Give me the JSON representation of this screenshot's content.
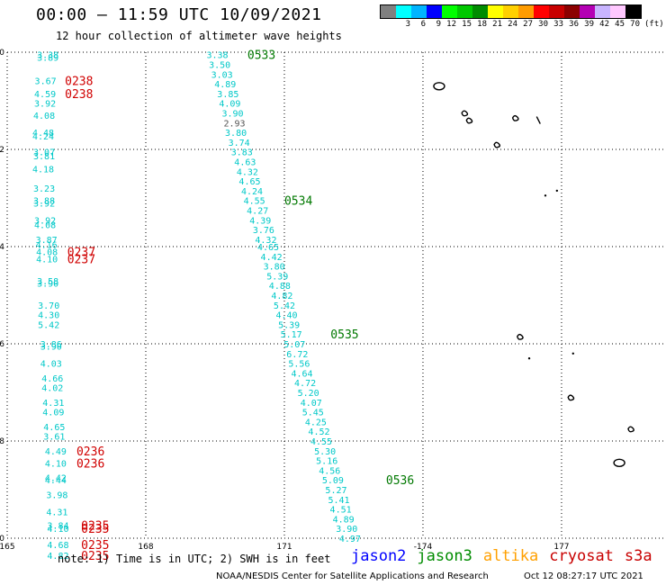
{
  "header": {
    "title": "00:00 – 11:59 UTC 10/09/2021",
    "subtitle": "12 hour collection of altimeter wave heights"
  },
  "colorbar": {
    "colors": [
      "#808080",
      "#00ffff",
      "#00b4ff",
      "#0000ff",
      "#00ff00",
      "#00c800",
      "#008c00",
      "#ffff00",
      "#ffd000",
      "#ff9c00",
      "#ff0000",
      "#c80000",
      "#8c0000",
      "#b400b4",
      "#c8b4ff",
      "#ffc8ff",
      "#000000"
    ],
    "labels": [
      "",
      "3",
      "6",
      "9",
      "12",
      "15",
      "18",
      "21",
      "24",
      "27",
      "30",
      "33",
      "36",
      "39",
      "42",
      "45",
      "70"
    ],
    "unit": "(ft)"
  },
  "map": {
    "lon_ticks": [
      "165",
      "168",
      "171",
      "-174",
      "177"
    ],
    "lat_ticks": [
      "0",
      "-2",
      "-4",
      "-6",
      "-8",
      "-10"
    ]
  },
  "tracks": {
    "west_values": [
      {
        "lat": -0.05,
        "lon": 165.88,
        "v": "3.38"
      },
      {
        "lat": -0.1,
        "lon": 165.88,
        "v": "3.89"
      },
      {
        "lat": -0.58,
        "lon": 165.83,
        "v": "3.67"
      },
      {
        "lat": -0.85,
        "lon": 165.82,
        "v": "4.59"
      },
      {
        "lat": -1.05,
        "lon": 165.82,
        "v": "3.92"
      },
      {
        "lat": -1.3,
        "lon": 165.8,
        "v": "4.08"
      },
      {
        "lat": -1.65,
        "lon": 165.78,
        "v": "4.48"
      },
      {
        "lat": -1.72,
        "lon": 165.78,
        "v": "4.24"
      },
      {
        "lat": -2.05,
        "lon": 165.8,
        "v": "3.07"
      },
      {
        "lat": -2.13,
        "lon": 165.8,
        "v": "3.81"
      },
      {
        "lat": -2.4,
        "lon": 165.78,
        "v": "4.18"
      },
      {
        "lat": -2.8,
        "lon": 165.8,
        "v": "3.23"
      },
      {
        "lat": -3.05,
        "lon": 165.8,
        "v": "3.88"
      },
      {
        "lat": -3.1,
        "lon": 165.8,
        "v": "3.92"
      },
      {
        "lat": -3.45,
        "lon": 165.82,
        "v": "3.92"
      },
      {
        "lat": -3.55,
        "lon": 165.82,
        "v": "4.08"
      },
      {
        "lat": -3.85,
        "lon": 165.85,
        "v": "3.87"
      },
      {
        "lat": -3.95,
        "lon": 165.85,
        "v": "4.16"
      },
      {
        "lat": -4.1,
        "lon": 165.86,
        "v": "4.08"
      },
      {
        "lat": -4.25,
        "lon": 165.86,
        "v": "4.10"
      },
      {
        "lat": -4.7,
        "lon": 165.88,
        "v": "3.58"
      },
      {
        "lat": -4.75,
        "lon": 165.88,
        "v": "3.90"
      },
      {
        "lat": -5.2,
        "lon": 165.9,
        "v": "3.70"
      },
      {
        "lat": -5.4,
        "lon": 165.9,
        "v": "4.30"
      },
      {
        "lat": -5.6,
        "lon": 165.9,
        "v": "5.42"
      },
      {
        "lat": -6.0,
        "lon": 165.95,
        "v": "3.86"
      },
      {
        "lat": -6.05,
        "lon": 165.95,
        "v": "3.90"
      },
      {
        "lat": -6.4,
        "lon": 165.95,
        "v": "4.03"
      },
      {
        "lat": -6.7,
        "lon": 165.98,
        "v": "4.66"
      },
      {
        "lat": -6.9,
        "lon": 165.98,
        "v": "4.02"
      },
      {
        "lat": -7.2,
        "lon": 166.0,
        "v": "4.31"
      },
      {
        "lat": -7.4,
        "lon": 166.0,
        "v": "4.09"
      },
      {
        "lat": -7.7,
        "lon": 166.02,
        "v": "4.65"
      },
      {
        "lat": -7.9,
        "lon": 166.02,
        "v": "3.61"
      },
      {
        "lat": -8.2,
        "lon": 166.05,
        "v": "4.49"
      },
      {
        "lat": -8.45,
        "lon": 166.05,
        "v": "4.10"
      },
      {
        "lat": -8.75,
        "lon": 166.05,
        "v": "4.42"
      },
      {
        "lat": -8.8,
        "lon": 166.05,
        "v": "4.44"
      },
      {
        "lat": -9.1,
        "lon": 166.08,
        "v": "3.98"
      },
      {
        "lat": -9.45,
        "lon": 166.08,
        "v": "4.31"
      },
      {
        "lat": -9.73,
        "lon": 166.1,
        "v": "3.84"
      },
      {
        "lat": -9.8,
        "lon": 166.1,
        "v": "4.10"
      },
      {
        "lat": -10.13,
        "lon": 166.1,
        "v": "4.68"
      },
      {
        "lat": -10.35,
        "lon": 166.1,
        "v": "4.82"
      }
    ],
    "west_times": [
      {
        "lat": -0.58,
        "lon": 166.25,
        "v": "0238"
      },
      {
        "lat": -0.85,
        "lon": 166.25,
        "v": "0238"
      },
      {
        "lat": -4.1,
        "lon": 166.3,
        "v": "0237"
      },
      {
        "lat": -4.25,
        "lon": 166.3,
        "v": "0237"
      },
      {
        "lat": -8.2,
        "lon": 166.5,
        "v": "0236"
      },
      {
        "lat": -8.45,
        "lon": 166.5,
        "v": "0236"
      },
      {
        "lat": -9.73,
        "lon": 166.6,
        "v": "0235"
      },
      {
        "lat": -9.8,
        "lon": 166.6,
        "v": "0235"
      },
      {
        "lat": -10.13,
        "lon": 166.6,
        "v": "0235"
      },
      {
        "lat": -10.35,
        "lon": 166.6,
        "v": "0235"
      }
    ],
    "east_values": [
      {
        "lat": -0.05,
        "lon": 169.55,
        "v": "3.38",
        "grey": false
      },
      {
        "lat": -0.25,
        "lon": 169.6,
        "v": "3.50",
        "grey": false
      },
      {
        "lat": -0.45,
        "lon": 169.65,
        "v": "3.03",
        "grey": false
      },
      {
        "lat": -0.65,
        "lon": 169.72,
        "v": "4.89",
        "grey": false
      },
      {
        "lat": -0.85,
        "lon": 169.78,
        "v": "3.85",
        "grey": false
      },
      {
        "lat": -1.05,
        "lon": 169.82,
        "v": "4.09",
        "grey": false
      },
      {
        "lat": -1.25,
        "lon": 169.88,
        "v": "3.90",
        "grey": false
      },
      {
        "lat": -1.45,
        "lon": 169.92,
        "v": "2.93",
        "grey": true
      },
      {
        "lat": -1.65,
        "lon": 169.95,
        "v": "3.80",
        "grey": false
      },
      {
        "lat": -1.85,
        "lon": 170.02,
        "v": "3.74",
        "grey": false
      },
      {
        "lat": -2.05,
        "lon": 170.08,
        "v": "3.83",
        "grey": false
      },
      {
        "lat": -2.25,
        "lon": 170.15,
        "v": "4.63",
        "grey": false
      },
      {
        "lat": -2.45,
        "lon": 170.2,
        "v": "4.32",
        "grey": false
      },
      {
        "lat": -2.65,
        "lon": 170.25,
        "v": "4.65",
        "grey": false
      },
      {
        "lat": -2.85,
        "lon": 170.3,
        "v": "4.24",
        "grey": false
      },
      {
        "lat": -3.05,
        "lon": 170.35,
        "v": "4.55",
        "grey": false
      },
      {
        "lat": -3.25,
        "lon": 170.42,
        "v": "4.27",
        "grey": false
      },
      {
        "lat": -3.45,
        "lon": 170.48,
        "v": "4.39",
        "grey": false
      },
      {
        "lat": -3.65,
        "lon": 170.55,
        "v": "3.76",
        "grey": false
      },
      {
        "lat": -3.85,
        "lon": 170.6,
        "v": "4.32",
        "grey": false
      },
      {
        "lat": -4.0,
        "lon": 170.65,
        "v": "4.65",
        "grey": false
      },
      {
        "lat": -4.2,
        "lon": 170.72,
        "v": "4.42",
        "grey": false
      },
      {
        "lat": -4.4,
        "lon": 170.78,
        "v": "3.80",
        "grey": false
      },
      {
        "lat": -4.6,
        "lon": 170.85,
        "v": "5.39",
        "grey": false
      },
      {
        "lat": -4.8,
        "lon": 170.9,
        "v": "4.88",
        "grey": false
      },
      {
        "lat": -5.0,
        "lon": 170.95,
        "v": "4.82",
        "grey": false
      },
      {
        "lat": -5.2,
        "lon": 171.0,
        "v": "5.42",
        "grey": false
      },
      {
        "lat": -5.4,
        "lon": 171.05,
        "v": "4.40",
        "grey": false
      },
      {
        "lat": -5.6,
        "lon": 171.1,
        "v": "5.39",
        "grey": false
      },
      {
        "lat": -5.8,
        "lon": 171.15,
        "v": "5.17",
        "grey": false
      },
      {
        "lat": -6.0,
        "lon": 171.22,
        "v": "5.07",
        "grey": false
      },
      {
        "lat": -6.2,
        "lon": 171.28,
        "v": "6.72",
        "grey": false
      },
      {
        "lat": -6.4,
        "lon": 171.32,
        "v": "5.56",
        "grey": false
      },
      {
        "lat": -6.6,
        "lon": 171.38,
        "v": "4.64",
        "grey": false
      },
      {
        "lat": -6.8,
        "lon": 171.45,
        "v": "4.72",
        "grey": false
      },
      {
        "lat": -7.0,
        "lon": 171.52,
        "v": "5.20",
        "grey": false
      },
      {
        "lat": -7.2,
        "lon": 171.58,
        "v": "4.07",
        "grey": false
      },
      {
        "lat": -7.4,
        "lon": 171.62,
        "v": "5.45",
        "grey": false
      },
      {
        "lat": -7.6,
        "lon": 171.68,
        "v": "4.25",
        "grey": false
      },
      {
        "lat": -7.8,
        "lon": 171.75,
        "v": "4.52",
        "grey": false
      },
      {
        "lat": -8.0,
        "lon": 171.8,
        "v": "4.55",
        "grey": false
      },
      {
        "lat": -8.2,
        "lon": 171.88,
        "v": "5.30",
        "grey": false
      },
      {
        "lat": -8.4,
        "lon": 171.92,
        "v": "5.16",
        "grey": false
      },
      {
        "lat": -8.6,
        "lon": 171.98,
        "v": "4.56",
        "grey": false
      },
      {
        "lat": -8.8,
        "lon": 172.05,
        "v": "5.09",
        "grey": false
      },
      {
        "lat": -9.0,
        "lon": 172.12,
        "v": "5.27",
        "grey": false
      },
      {
        "lat": -9.2,
        "lon": 172.18,
        "v": "5.41",
        "grey": false
      },
      {
        "lat": -9.4,
        "lon": 172.22,
        "v": "4.51",
        "grey": false
      },
      {
        "lat": -9.6,
        "lon": 172.28,
        "v": "4.89",
        "grey": false
      },
      {
        "lat": -9.8,
        "lon": 172.35,
        "v": "3.90",
        "grey": false
      },
      {
        "lat": -10.0,
        "lon": 172.42,
        "v": "4.97",
        "grey": false
      }
    ],
    "east_times": [
      {
        "lat": -0.05,
        "lon": 170.2,
        "v": "0533"
      },
      {
        "lat": -3.05,
        "lon": 171.0,
        "v": "0534"
      },
      {
        "lat": -5.8,
        "lon": 172.0,
        "v": "0535"
      },
      {
        "lat": -8.8,
        "lon": 173.2,
        "v": "0536"
      }
    ]
  },
  "islands": [
    {
      "lat": -0.7,
      "lon": 174.35,
      "shape": "ring"
    },
    {
      "lat": -1.25,
      "lon": 174.9,
      "shape": "blob"
    },
    {
      "lat": -1.4,
      "lon": 175.0,
      "shape": "blob"
    },
    {
      "lat": -1.9,
      "lon": 175.6,
      "shape": "blob"
    },
    {
      "lat": -1.35,
      "lon": 176.0,
      "shape": "blob"
    },
    {
      "lat": -1.4,
      "lon": 176.5,
      "shape": "line"
    },
    {
      "lat": -2.85,
      "lon": 176.9,
      "shape": "dot"
    },
    {
      "lat": -2.95,
      "lon": 176.65,
      "shape": "dot"
    },
    {
      "lat": -5.85,
      "lon": 176.1,
      "shape": "blob"
    },
    {
      "lat": -6.3,
      "lon": 176.3,
      "shape": "dot"
    },
    {
      "lat": -6.2,
      "lon": 177.25,
      "shape": "dot"
    },
    {
      "lat": -7.1,
      "lon": 177.2,
      "shape": "blob"
    },
    {
      "lat": -7.75,
      "lon": 178.5,
      "shape": "blob"
    },
    {
      "lat": -8.45,
      "lon": 178.25,
      "shape": "ring"
    }
  ],
  "footer": {
    "note": "note: 1) Time is in UTC; 2) SWH is in feet",
    "legend": [
      {
        "label": "jason2",
        "color": "#0000ff"
      },
      {
        "label": "jason3",
        "color": "#008c00"
      },
      {
        "label": "altika",
        "color": "#ffa000"
      },
      {
        "label": "cryosat",
        "color": "#c80000"
      },
      {
        "label": "s3a",
        "color": "#c80000"
      }
    ],
    "credit": "NOAA/NESDIS Center for Satellite Applications and Research",
    "timestamp": "Oct 12 08:27:17 UTC 2021"
  },
  "style": {
    "value_color": "#00c8c8",
    "grey_value_color": "#555555",
    "west_time_color": "#d00000",
    "east_time_color": "#007800"
  }
}
